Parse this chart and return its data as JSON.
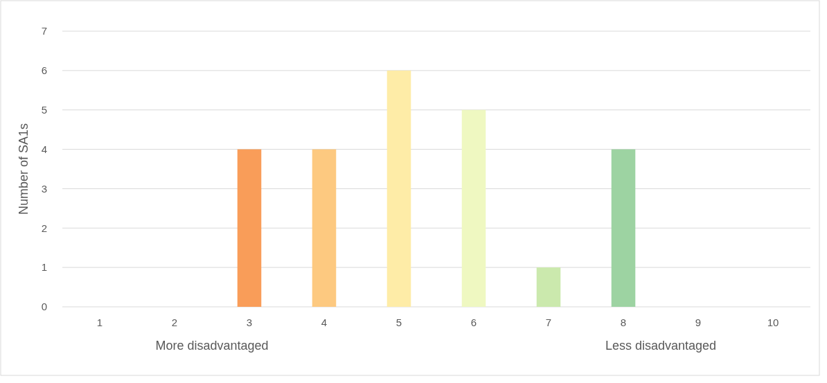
{
  "chart_data": {
    "type": "bar",
    "ylabel": "Number of SA1s",
    "categories": [
      "1",
      "2",
      "3",
      "4",
      "5",
      "6",
      "7",
      "8",
      "9",
      "10"
    ],
    "values": [
      0,
      0,
      4,
      4,
      6,
      5,
      1,
      4,
      0,
      0
    ],
    "colors": [
      "#d73027",
      "#f46d43",
      "#f99d59",
      "#fdc980",
      "#feeca7",
      "#eff8c1",
      "#cbe9ad",
      "#9dd3a2",
      "#66bd63",
      "#1a9850"
    ],
    "ylim": [
      0,
      7
    ],
    "yticks": [
      0,
      1,
      2,
      3,
      4,
      5,
      6,
      7
    ],
    "grid": "y",
    "annotations": [
      "More disadvantaged",
      "Less disadvantaged"
    ]
  }
}
